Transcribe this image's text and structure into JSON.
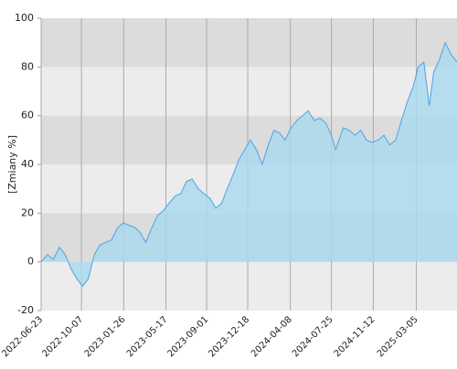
{
  "chart_data": {
    "type": "area",
    "y_label": "[Zmiany %]",
    "x": [
      "2022-06-23",
      "2022-07-10",
      "2022-07-25",
      "2022-08-10",
      "2022-08-25",
      "2022-09-10",
      "2022-09-25",
      "2022-10-10",
      "2022-10-25",
      "2022-11-10",
      "2022-11-25",
      "2022-12-10",
      "2022-12-25",
      "2023-01-10",
      "2023-01-25",
      "2023-02-10",
      "2023-02-25",
      "2023-03-10",
      "2023-03-25",
      "2023-04-10",
      "2023-04-25",
      "2023-05-10",
      "2023-05-25",
      "2023-06-10",
      "2023-06-25",
      "2023-07-10",
      "2023-07-25",
      "2023-08-10",
      "2023-08-25",
      "2023-09-10",
      "2023-09-25",
      "2023-10-10",
      "2023-10-25",
      "2023-11-10",
      "2023-11-25",
      "2023-12-10",
      "2023-12-25",
      "2024-01-10",
      "2024-01-25",
      "2024-02-10",
      "2024-02-25",
      "2024-03-10",
      "2024-03-25",
      "2024-04-10",
      "2024-04-25",
      "2024-05-10",
      "2024-05-25",
      "2024-06-10",
      "2024-06-25",
      "2024-07-10",
      "2024-07-25",
      "2024-08-05",
      "2024-08-25",
      "2024-09-10",
      "2024-09-25",
      "2024-10-10",
      "2024-10-25",
      "2024-11-10",
      "2024-11-25",
      "2024-12-10",
      "2024-12-25",
      "2025-01-10",
      "2025-01-25",
      "2025-02-10",
      "2025-02-25",
      "2025-03-10",
      "2025-03-25",
      "2025-04-08",
      "2025-04-20",
      "2025-05-05",
      "2025-05-20",
      "2025-06-05",
      "2025-06-20"
    ],
    "values": [
      0,
      3,
      1,
      6,
      3,
      -3,
      -7,
      -10,
      -7,
      3,
      7,
      8,
      9,
      14,
      16,
      15,
      14,
      12,
      8,
      14,
      19,
      21,
      24,
      27,
      28,
      33,
      34,
      30,
      28,
      26,
      22,
      24,
      30,
      36,
      42,
      46,
      50,
      46,
      40,
      48,
      54,
      53,
      50,
      55,
      58,
      60,
      62,
      58,
      59,
      57,
      52,
      46,
      55,
      54,
      52,
      54,
      50,
      49,
      50,
      52,
      48,
      50,
      58,
      66,
      72,
      80,
      82,
      64,
      78,
      83,
      90,
      85,
      82
    ],
    "line_color": "#4aa3e6",
    "fill_color": "#a9d9ef",
    "xlim": [
      "2022-06-23",
      "2025-06-20"
    ],
    "xticks": [
      "2022-06-23",
      "2022-10-07",
      "2023-01-26",
      "2023-05-17",
      "2023-09-01",
      "2023-12-18",
      "2024-04-08",
      "2024-07-25",
      "2024-11-12",
      "2025-03-05"
    ],
    "ylim": [
      -20,
      100
    ],
    "yticks": [
      -20,
      0,
      20,
      40,
      60,
      80,
      100
    ],
    "band_colors": [
      "#ececec",
      "#dcdcdc"
    ],
    "grid": true
  }
}
